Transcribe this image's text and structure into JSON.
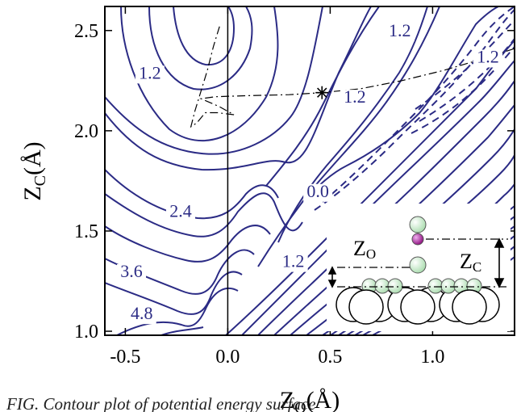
{
  "chart_data": {
    "type": "contour",
    "xlabel": "Z",
    "xlabel_sub": "O",
    "xlabel_unit": "(Å)",
    "ylabel": "Z",
    "ylabel_sub": "C",
    "ylabel_unit": "(Å)",
    "xlim": [
      -0.6,
      1.4
    ],
    "ylim": [
      0.98,
      2.62
    ],
    "x_ticks": [
      -0.5,
      0.0,
      0.5,
      1.0
    ],
    "x_tick_labels": [
      "-0.5",
      "0.0",
      "0.5",
      "1.0"
    ],
    "y_ticks": [
      1.0,
      1.5,
      2.0,
      2.5
    ],
    "y_tick_labels": [
      "1.0",
      "1.5",
      "2.0",
      "2.5"
    ],
    "contour_color": "#2b2b85",
    "contour_labels": [
      {
        "text": "1.2",
        "x": -0.38,
        "y": 2.26
      },
      {
        "text": "1.2",
        "x": 0.84,
        "y": 2.47
      },
      {
        "text": "1.2",
        "x": 0.62,
        "y": 2.14
      },
      {
        "text": "1.2",
        "x": 1.27,
        "y": 2.34
      },
      {
        "text": "0.0",
        "x": 0.44,
        "y": 1.67
      },
      {
        "text": "1.2",
        "x": 0.32,
        "y": 1.32
      },
      {
        "text": "2.4",
        "x": -0.23,
        "y": 1.57
      },
      {
        "text": "3.6",
        "x": -0.47,
        "y": 1.27
      },
      {
        "text": "4.8",
        "x": -0.42,
        "y": 1.06
      }
    ],
    "reaction_path": [
      [
        -0.04,
        2.52
      ],
      [
        -0.07,
        2.42
      ],
      [
        -0.1,
        2.3
      ],
      [
        -0.13,
        2.2
      ],
      [
        -0.16,
        2.1
      ],
      [
        -0.18,
        2.02
      ],
      [
        -0.15,
        2.04
      ],
      [
        -0.11,
        2.09
      ],
      [
        -0.05,
        2.09
      ],
      [
        0.03,
        2.08
      ],
      [
        -0.04,
        2.12
      ],
      [
        -0.13,
        2.16
      ],
      [
        -0.06,
        2.17
      ],
      [
        0.1,
        2.175
      ],
      [
        0.3,
        2.18
      ],
      [
        0.46,
        2.19
      ],
      [
        0.65,
        2.21
      ],
      [
        0.85,
        2.25
      ],
      [
        1.05,
        2.3
      ],
      [
        1.25,
        2.36
      ],
      [
        1.4,
        2.41
      ]
    ],
    "saddle_point": {
      "x": 0.46,
      "y": 2.19
    },
    "inset": {
      "label_zo_main": "Z",
      "label_zo_sub": "O",
      "label_zc_main": "Z",
      "label_zc_sub": "C"
    }
  },
  "caption": "FIG. Contour plot of potential energy surface"
}
